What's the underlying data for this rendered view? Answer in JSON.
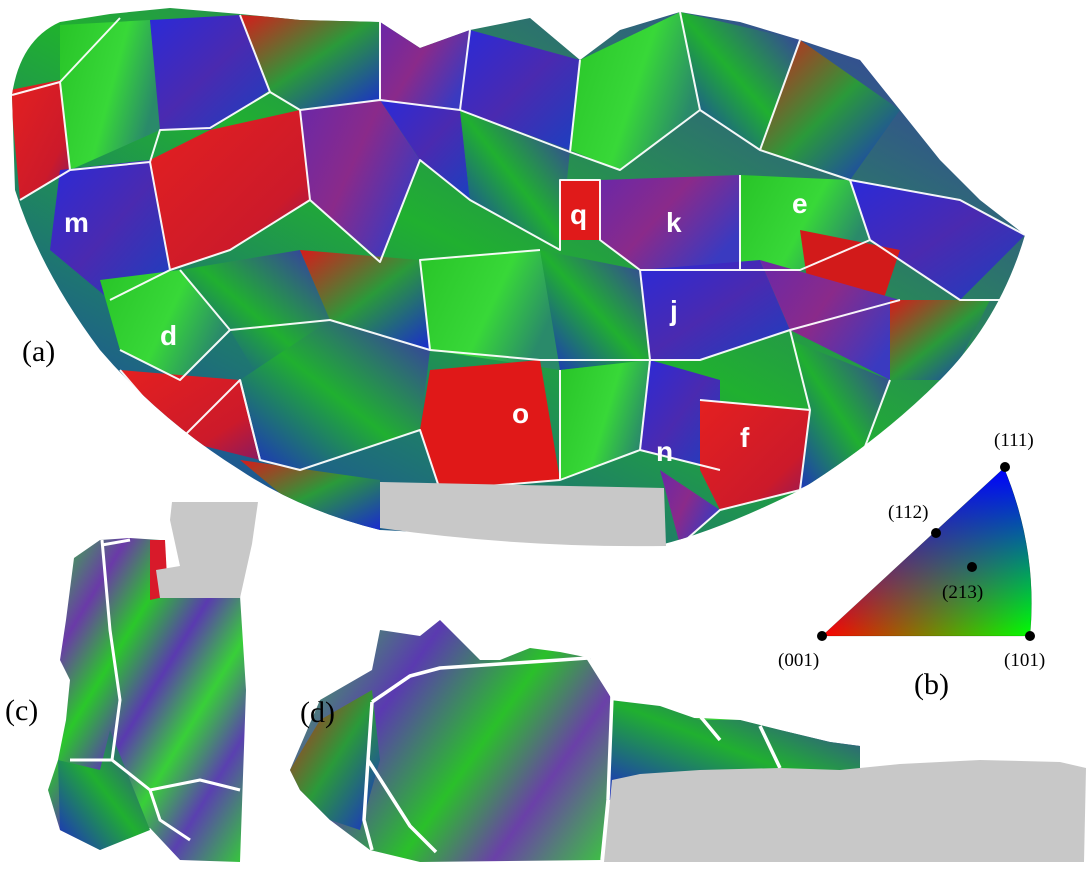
{
  "panels": {
    "a": "(a)",
    "b": "(b)",
    "c": "(c)",
    "d": "(d)"
  },
  "grains": [
    {
      "id": "m",
      "label": "m"
    },
    {
      "id": "d",
      "label": "d"
    },
    {
      "id": "q",
      "label": "q"
    },
    {
      "id": "k",
      "label": "k"
    },
    {
      "id": "e",
      "label": "e"
    },
    {
      "id": "j",
      "label": "j"
    },
    {
      "id": "o",
      "label": "o"
    },
    {
      "id": "n",
      "label": "n"
    },
    {
      "id": "f",
      "label": "f"
    }
  ],
  "legend": {
    "poles": [
      {
        "id": "001",
        "label": "(001)",
        "color": "#ff0000"
      },
      {
        "id": "101",
        "label": "(101)",
        "color": "#00ff00"
      },
      {
        "id": "111",
        "label": "(111)",
        "color": "#0000ff"
      },
      {
        "id": "112",
        "label": "(112)",
        "color": "#7f00bf"
      },
      {
        "id": "213",
        "label": "(213)",
        "color": "#406060"
      }
    ]
  },
  "colors": {
    "red": "#e01818",
    "green": "#22cc22",
    "blue": "#2020d0",
    "purple": "#6a2aa0",
    "grey_mask": "#c8c8c8",
    "boundary": "#ffffff"
  }
}
